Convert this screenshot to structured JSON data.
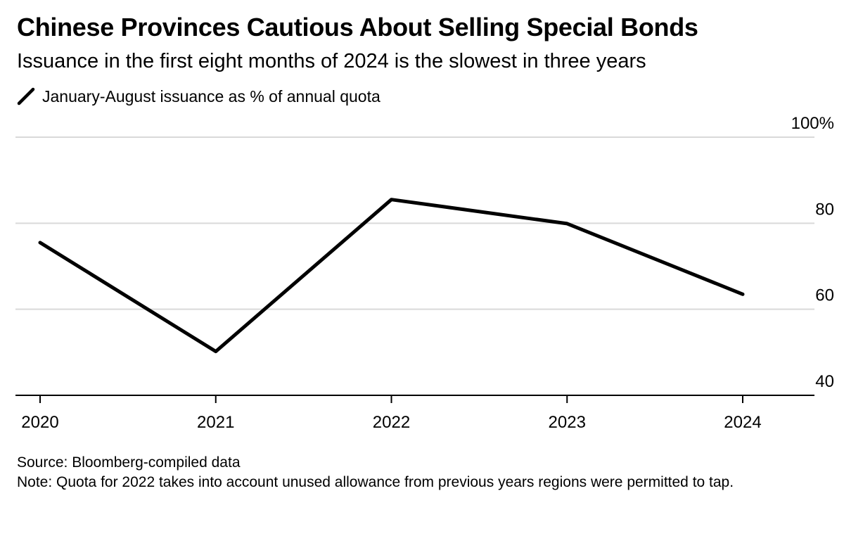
{
  "chart_data": {
    "type": "line",
    "title": "Chinese Provinces Cautious About Selling Special Bonds",
    "subtitle": "Issuance in the first eight months of 2024 is the slowest in three years",
    "x": [
      "2020",
      "2021",
      "2022",
      "2023",
      "2024"
    ],
    "series": [
      {
        "name": "January-August issuance as % of annual quota",
        "values": [
          75.5,
          50.2,
          85.5,
          79.9,
          63.5
        ],
        "color": "#000000"
      }
    ],
    "ylim": [
      40,
      100
    ],
    "yticks": [
      40,
      60,
      80,
      100
    ],
    "ytick_labels": [
      "40",
      "60",
      "80",
      "100%"
    ],
    "grid": true,
    "y_axis_side": "right",
    "legend_position": "top-left"
  },
  "footer": {
    "source": "Source: Bloomberg-compiled data",
    "note": "Note: Quota for 2022 takes into account unused allowance from previous years regions were permitted to tap."
  },
  "colors": {
    "line": "#000000",
    "grid": "#d9d9d9",
    "axis": "#000000",
    "text": "#000000"
  }
}
